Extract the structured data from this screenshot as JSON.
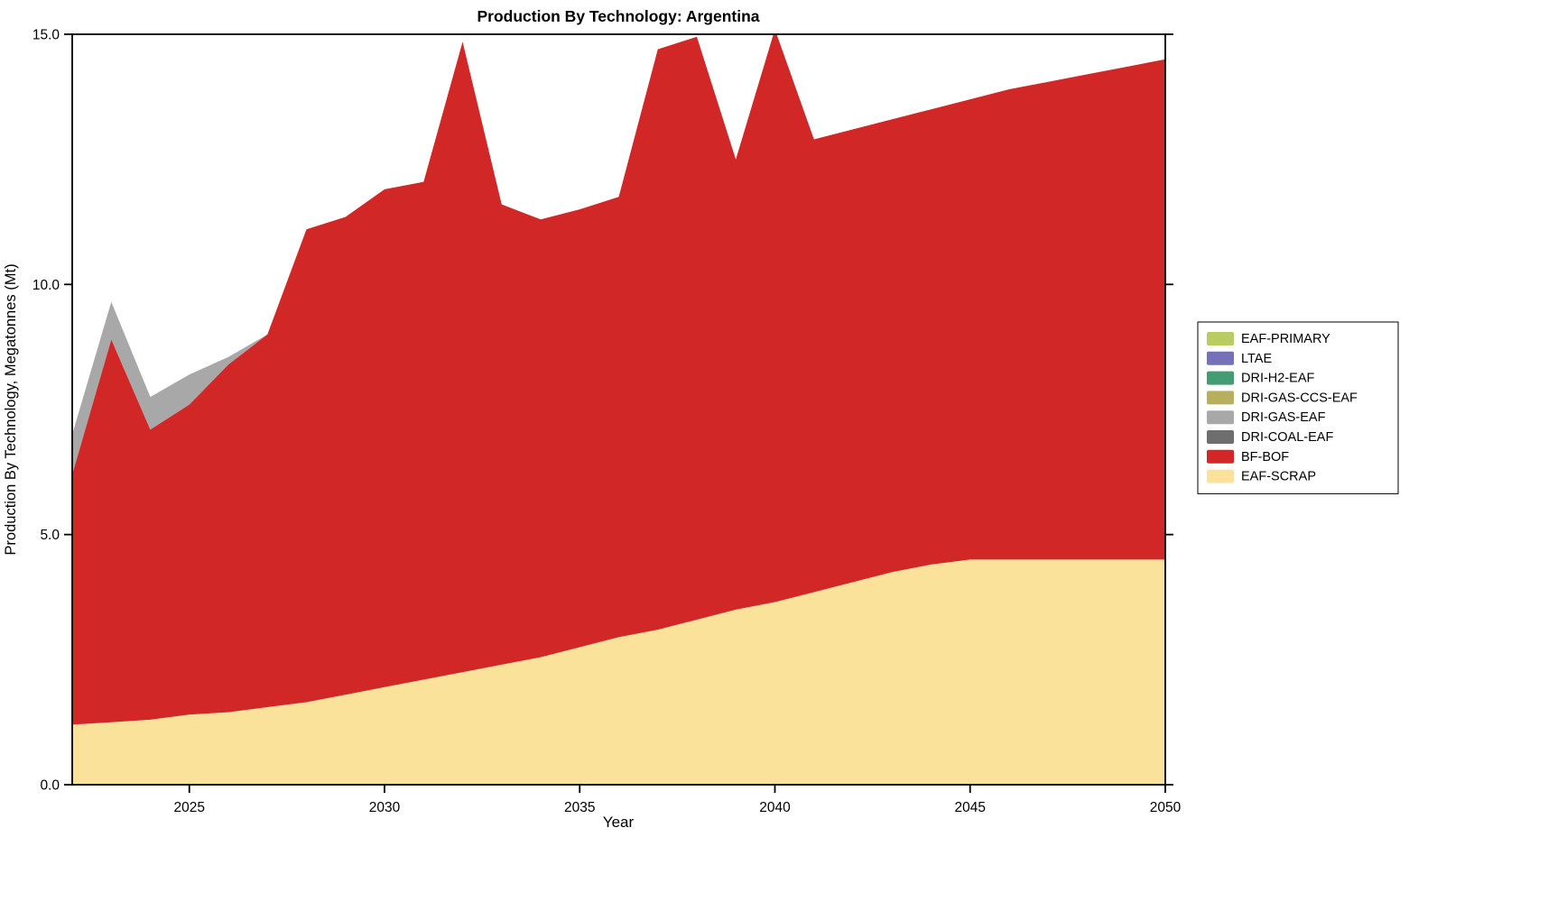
{
  "chart_data": {
    "type": "area",
    "stacked": true,
    "title": "Production By Technology: Argentina",
    "xlabel": "Year",
    "ylabel": "Production By Technology, Megatonnes (Mt)",
    "xlim": [
      2022,
      2050
    ],
    "ylim": [
      0,
      15
    ],
    "grid": false,
    "legend_position": "outside-right",
    "background_color": "#ffffff",
    "axis_color": "#000000",
    "x": [
      2022,
      2023,
      2024,
      2025,
      2026,
      2027,
      2028,
      2029,
      2030,
      2031,
      2032,
      2033,
      2034,
      2035,
      2036,
      2037,
      2038,
      2039,
      2040,
      2041,
      2042,
      2043,
      2044,
      2045,
      2046,
      2047,
      2048,
      2049,
      2050
    ],
    "x_ticks": [
      2025,
      2030,
      2035,
      2040,
      2045,
      2050
    ],
    "x_tick_labels": [
      "2025",
      "2030",
      "2035",
      "2040",
      "2045",
      "2050"
    ],
    "y_ticks": [
      0,
      5,
      10,
      15
    ],
    "y_tick_labels": [
      "0.0",
      "5.0",
      "10.0",
      "15.0"
    ],
    "series_stack_order_note": "bottom-to-top; legend shows reverse order",
    "series": [
      {
        "name": "EAF-SCRAP",
        "color": "#fae29a",
        "values": [
          1.2,
          1.25,
          1.3,
          1.4,
          1.45,
          1.55,
          1.65,
          1.8,
          1.95,
          2.1,
          2.25,
          2.4,
          2.55,
          2.75,
          2.95,
          3.1,
          3.3,
          3.5,
          3.65,
          3.85,
          4.05,
          4.25,
          4.4,
          4.5,
          4.5,
          4.5,
          4.5,
          4.5,
          4.5
        ]
      },
      {
        "name": "BF-BOF",
        "color": "#d12727",
        "values": [
          5.0,
          7.65,
          5.8,
          6.2,
          6.95,
          7.45,
          9.45,
          9.55,
          9.95,
          9.95,
          12.6,
          9.2,
          8.75,
          8.75,
          8.8,
          11.6,
          11.65,
          9.0,
          11.45,
          9.05,
          9.05,
          9.05,
          9.1,
          9.2,
          9.4,
          9.55,
          9.7,
          9.85,
          10.0
        ]
      },
      {
        "name": "DRI-COAL-EAF",
        "color": "#6e6e6e",
        "values": [
          0,
          0,
          0,
          0,
          0,
          0,
          0,
          0,
          0,
          0,
          0,
          0,
          0,
          0,
          0,
          0,
          0,
          0,
          0,
          0,
          0,
          0,
          0,
          0,
          0,
          0,
          0,
          0,
          0
        ]
      },
      {
        "name": "DRI-GAS-EAF",
        "color": "#a8a8a8",
        "values": [
          0.8,
          0.75,
          0.65,
          0.6,
          0.15,
          0,
          0,
          0,
          0,
          0,
          0,
          0,
          0,
          0,
          0,
          0,
          0,
          0,
          0,
          0,
          0,
          0,
          0,
          0,
          0,
          0,
          0,
          0,
          0
        ]
      },
      {
        "name": "DRI-GAS-CCS-EAF",
        "color": "#b7af5e",
        "values": [
          0,
          0,
          0,
          0,
          0,
          0,
          0,
          0,
          0,
          0,
          0,
          0,
          0,
          0,
          0,
          0,
          0,
          0,
          0,
          0,
          0,
          0,
          0,
          0,
          0,
          0,
          0,
          0,
          0
        ]
      },
      {
        "name": "DRI-H2-EAF",
        "color": "#459b72",
        "values": [
          0,
          0,
          0,
          0,
          0,
          0,
          0,
          0,
          0,
          0,
          0,
          0,
          0,
          0,
          0,
          0,
          0,
          0,
          0,
          0,
          0,
          0,
          0,
          0,
          0,
          0,
          0,
          0,
          0
        ]
      },
      {
        "name": "LTAE",
        "color": "#7471b8",
        "values": [
          0,
          0,
          0,
          0,
          0,
          0,
          0,
          0,
          0,
          0,
          0,
          0,
          0,
          0,
          0,
          0,
          0,
          0,
          0,
          0,
          0,
          0,
          0,
          0,
          0,
          0,
          0,
          0,
          0
        ]
      },
      {
        "name": "EAF-PRIMARY",
        "color": "#b9cc62",
        "values": [
          0,
          0,
          0,
          0,
          0,
          0,
          0,
          0,
          0,
          0,
          0,
          0,
          0,
          0,
          0,
          0,
          0,
          0,
          0,
          0,
          0,
          0,
          0,
          0,
          0,
          0,
          0,
          0,
          0
        ]
      }
    ],
    "legend_entries": [
      "EAF-PRIMARY",
      "LTAE",
      "DRI-H2-EAF",
      "DRI-GAS-CCS-EAF",
      "DRI-GAS-EAF",
      "DRI-COAL-EAF",
      "BF-BOF",
      "EAF-SCRAP"
    ]
  }
}
